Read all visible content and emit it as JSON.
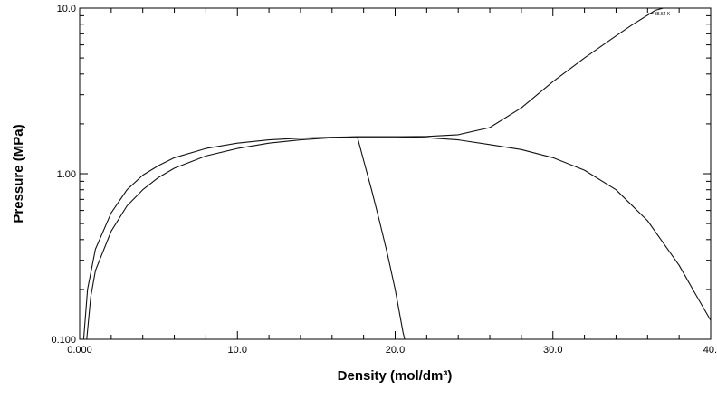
{
  "chart_data": {
    "type": "line",
    "xlabel": "Density (mol/dm³)",
    "ylabel": "Pressure (MPa)",
    "xlim": [
      0,
      40
    ],
    "ylim": [
      0.1,
      10
    ],
    "yscale": "log",
    "grid": false,
    "x_ticks": [
      {
        "value": 0,
        "label": "0.000"
      },
      {
        "value": 10,
        "label": "10.0"
      },
      {
        "value": 20,
        "label": "20.0"
      },
      {
        "value": 30,
        "label": "30.0"
      },
      {
        "value": 40,
        "label": "40."
      }
    ],
    "y_ticks": [
      {
        "value": 0.1,
        "label": "0.100"
      },
      {
        "value": 1,
        "label": "1.00"
      },
      {
        "value": 10,
        "label": "10.0"
      }
    ],
    "annotation": "38.54 K",
    "series": [
      {
        "points": [
          [
            0.25,
            0.1
          ],
          [
            0.5,
            0.2
          ],
          [
            1,
            0.35
          ],
          [
            2,
            0.58
          ],
          [
            3,
            0.8
          ],
          [
            4,
            0.98
          ],
          [
            5,
            1.12
          ],
          [
            6,
            1.25
          ],
          [
            8,
            1.42
          ],
          [
            10,
            1.53
          ],
          [
            12,
            1.6
          ],
          [
            14,
            1.64
          ],
          [
            16,
            1.66
          ],
          [
            17.6,
            1.67
          ],
          [
            20,
            1.67
          ],
          [
            22,
            1.68
          ],
          [
            24,
            1.72
          ],
          [
            26,
            1.9
          ],
          [
            28,
            2.5
          ],
          [
            30,
            3.6
          ],
          [
            32,
            5.0
          ],
          [
            34,
            6.8
          ],
          [
            35,
            7.9
          ],
          [
            36.5,
            9.7
          ],
          [
            37,
            10.0
          ]
        ]
      },
      {
        "points": [
          [
            0.45,
            0.1
          ],
          [
            0.7,
            0.18
          ],
          [
            1,
            0.26
          ],
          [
            2,
            0.45
          ],
          [
            3,
            0.64
          ],
          [
            4,
            0.8
          ],
          [
            5,
            0.95
          ],
          [
            6,
            1.08
          ],
          [
            8,
            1.28
          ],
          [
            10,
            1.42
          ],
          [
            12,
            1.53
          ],
          [
            14,
            1.6
          ],
          [
            16,
            1.65
          ],
          [
            17.6,
            1.67
          ],
          [
            20,
            1.67
          ],
          [
            22,
            1.65
          ],
          [
            24,
            1.6
          ],
          [
            26,
            1.5
          ],
          [
            28,
            1.4
          ],
          [
            30,
            1.25
          ],
          [
            32,
            1.05
          ],
          [
            34,
            0.8
          ],
          [
            36,
            0.52
          ],
          [
            38,
            0.28
          ],
          [
            39,
            0.19
          ],
          [
            40,
            0.13
          ]
        ]
      },
      {
        "points": [
          [
            17.6,
            1.67
          ],
          [
            18,
            1.2
          ],
          [
            18.5,
            0.8
          ],
          [
            19,
            0.52
          ],
          [
            19.5,
            0.33
          ],
          [
            20,
            0.2
          ],
          [
            20.5,
            0.11
          ],
          [
            20.6,
            0.1
          ]
        ]
      }
    ]
  }
}
